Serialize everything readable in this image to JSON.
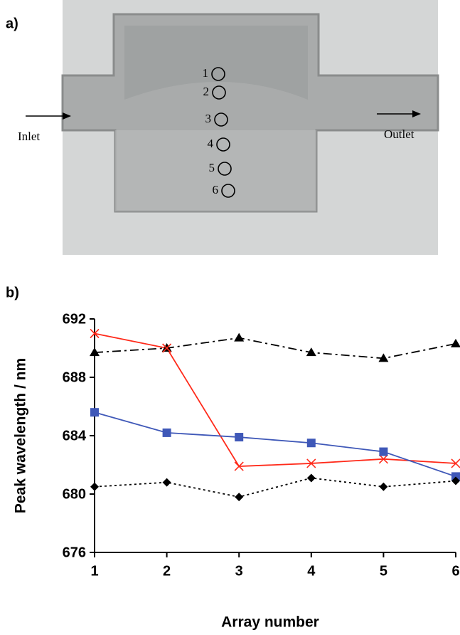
{
  "panel_a": {
    "label": "a)",
    "inlet": "Inlet",
    "outlet": "Outlet",
    "spots": [
      "1",
      "2",
      "3",
      "4",
      "5",
      "6"
    ]
  },
  "chart_data": {
    "type": "line",
    "panel_label": "b)",
    "x_label": "Array number",
    "y_label": "Peak wavelength / nm",
    "x": [
      1,
      2,
      3,
      4,
      5,
      6
    ],
    "xlim": [
      1,
      6
    ],
    "xticks": [
      1,
      2,
      3,
      4,
      5,
      6
    ],
    "ylim": [
      676,
      692
    ],
    "yticks": [
      676,
      680,
      684,
      688,
      692
    ],
    "grid": false,
    "series": [
      {
        "color": "#000000",
        "marker": "triangle",
        "dash": "dashdot",
        "values": [
          689.7,
          690.0,
          690.7,
          689.7,
          689.3,
          690.3
        ]
      },
      {
        "color": "#ff2a1a",
        "marker": "x",
        "dash": "solid",
        "values": [
          691.0,
          690.0,
          681.9,
          682.1,
          682.4,
          682.1
        ]
      },
      {
        "color": "#3f58b8",
        "marker": "square",
        "dash": "solid",
        "values": [
          685.6,
          684.2,
          683.9,
          683.5,
          682.9,
          681.2
        ]
      },
      {
        "color": "#000000",
        "marker": "diamond",
        "dash": "dotted",
        "values": [
          680.5,
          680.8,
          679.8,
          681.1,
          680.5,
          680.9
        ]
      }
    ]
  }
}
